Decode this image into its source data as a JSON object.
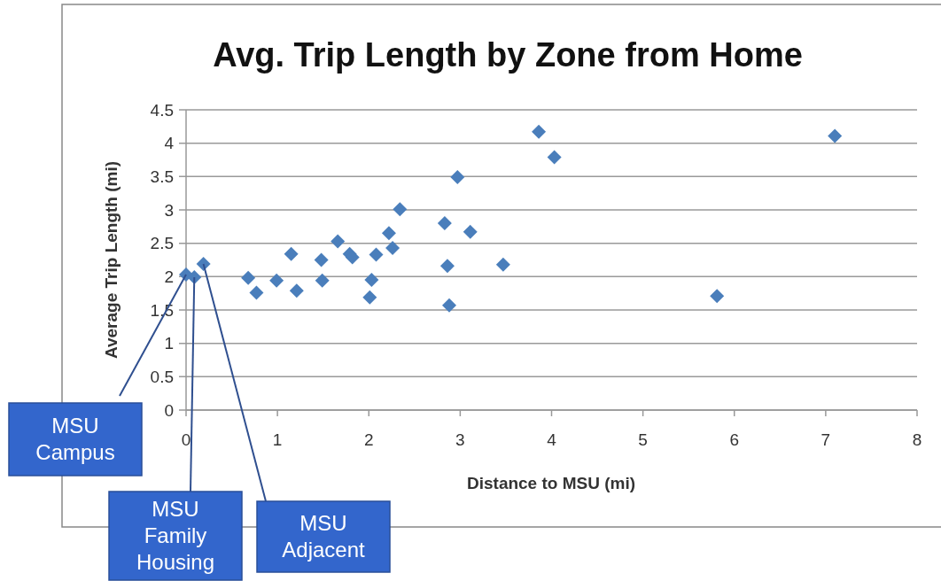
{
  "chart_data": {
    "type": "scatter",
    "title": "Avg. Trip Length by Zone from Home",
    "xlabel": "Distance to MSU (mi)",
    "ylabel": "Average Trip Length (mi)",
    "xlim": [
      0,
      8
    ],
    "xticks": [
      0,
      1,
      2,
      3,
      4,
      5,
      6,
      7,
      8
    ],
    "ylim": [
      0,
      4.5
    ],
    "yticks": [
      0,
      0.5,
      1,
      1.5,
      2,
      2.5,
      3,
      3.5,
      4,
      4.5
    ],
    "grid": "y",
    "marker": "diamond",
    "series": [
      {
        "color": "#4a7ebb",
        "x": [
          0,
          0.09,
          0.19,
          0.68,
          0.77,
          0.99,
          1.15,
          1.21,
          1.48,
          1.49,
          1.66,
          1.79,
          1.82,
          2.01,
          2.03,
          2.08,
          2.22,
          2.26,
          2.34,
          2.83,
          2.86,
          2.88,
          2.97,
          3.11,
          3.47,
          3.86,
          4.03,
          5.81,
          7.1
        ],
        "values": [
          2.03,
          1.99,
          2.19,
          1.98,
          1.76,
          1.94,
          2.34,
          1.79,
          2.25,
          1.94,
          2.53,
          2.34,
          2.29,
          1.69,
          1.95,
          2.33,
          2.65,
          2.43,
          3.01,
          2.8,
          2.16,
          1.57,
          3.49,
          2.67,
          2.18,
          4.17,
          3.79,
          1.71,
          4.11
        ]
      }
    ],
    "annotations": [
      {
        "text": "MSU Campus",
        "x": 0,
        "y": 2.03
      },
      {
        "text": "MSU Family Housing",
        "x": 0.09,
        "y": 1.99
      },
      {
        "text": "MSU Adjacent",
        "x": 0.19,
        "y": 2.19
      }
    ]
  }
}
